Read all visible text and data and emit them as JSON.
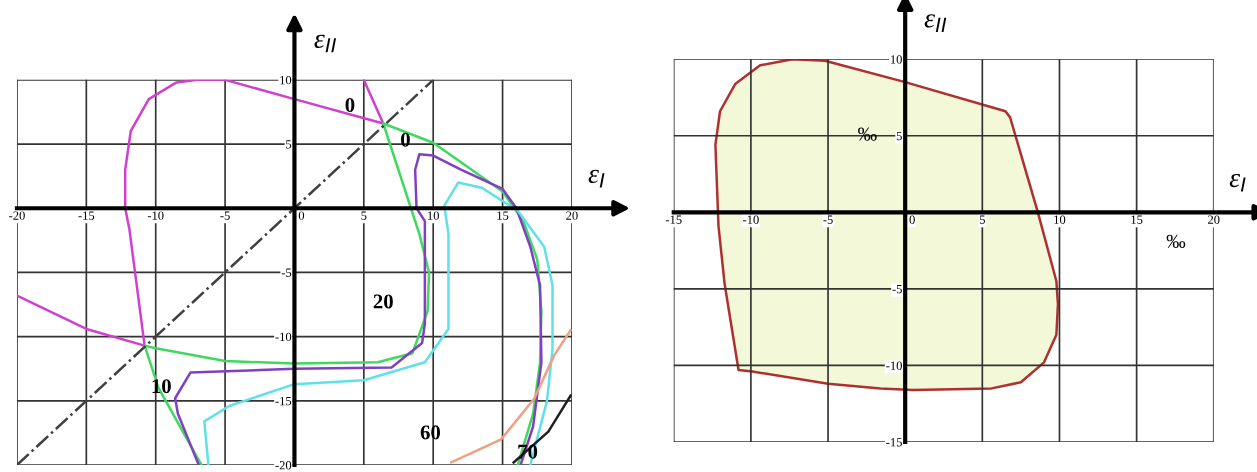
{
  "chart_data": [
    {
      "type": "line",
      "xlabel": "ε$_{I}$",
      "ylabel": "ε$_{II}$",
      "xlim": [
        -20,
        20
      ],
      "ylim": [
        -20,
        10
      ],
      "xticks": [
        -20,
        -15,
        -10,
        -5,
        0,
        5,
        10,
        15,
        20
      ],
      "yticks": [
        -20,
        -15,
        -10,
        -5,
        {
          "value": 0,
          "label": null
        },
        5,
        10
      ],
      "grid": true,
      "marker": "none",
      "series": [
        {
          "color": "#d040d0",
          "x": [
            -20,
            -15,
            -10.8,
            -11.9,
            -12.2,
            -12.2,
            -11.8,
            -10.5,
            -8.5,
            -7,
            -5,
            0,
            6.4,
            5
          ],
          "values": [
            -6.8,
            -9.4,
            -10.7,
            -1.6,
            0,
            3,
            6,
            8.5,
            9.8,
            10,
            10,
            8.5,
            6.6,
            10
          ]
        },
        {
          "color": "#40d860",
          "x": [
            6.4,
            10,
            15,
            16.5,
            17.5,
            17.8,
            17.7,
            17.2,
            16.1
          ],
          "values": [
            6.6,
            5.1,
            1.3,
            -1,
            -4,
            -8,
            -12,
            -16,
            -20
          ]
        },
        {
          "color": "#40d860",
          "x": [
            6.4,
            9,
            9.7,
            9.6,
            8.5,
            6,
            0,
            -5,
            -10,
            -10.8,
            -9.8,
            -6.7
          ],
          "values": [
            6.6,
            -2,
            -5,
            -8,
            -11.3,
            -12,
            -12.1,
            -11.9,
            -10.9,
            -10.7,
            -14,
            -20
          ]
        },
        {
          "color": "#8040c0",
          "x": [
            -6.9,
            -8.4,
            -8.6,
            -7.5,
            0,
            7,
            9.2,
            9.4,
            9.4,
            8.8,
            8.7,
            9,
            10,
            12,
            15,
            16,
            17,
            17.7,
            17.8,
            17.2,
            16.3
          ],
          "values": [
            -20,
            -16,
            -14.8,
            -12.8,
            -12.5,
            -12.4,
            -10.5,
            -9,
            -1,
            0,
            3,
            4.2,
            4.1,
            3,
            1.5,
            0,
            -3,
            -6,
            -12,
            -17,
            -20
          ]
        },
        {
          "color": "#60e0e8",
          "x": [
            -6.2,
            -6.5,
            -4.7,
            0,
            5,
            9.4,
            11.1,
            11.1,
            10.8,
            11.8,
            13.5,
            16.1,
            18,
            18.6,
            18.6,
            18.2,
            17
          ],
          "values": [
            -20,
            -16.6,
            -15.4,
            -13.7,
            -13.4,
            -12,
            -9.4,
            -2,
            0.2,
            2,
            1.6,
            -0.2,
            -3,
            -6,
            -11,
            -15,
            -20
          ]
        },
        {
          "color": "#f0a080",
          "x": [
            11.3,
            14.9,
            17.3,
            18.7,
            19.9
          ],
          "values": [
            -19.8,
            -18,
            -14.8,
            -11.5,
            -9.5
          ]
        },
        {
          "color": "#202020",
          "x": [
            15.8,
            18.3,
            19.9
          ],
          "values": [
            -19.8,
            -17.4,
            -14.6
          ]
        },
        {
          "color": "#404040",
          "line_style": "dashed",
          "x": [
            -20,
            10
          ],
          "values": [
            -20,
            10
          ]
        }
      ],
      "annotations": [
        "0",
        "0",
        "10",
        "20",
        "60",
        "70"
      ]
    },
    {
      "type": "area",
      "xlabel": "ε$_{I}$",
      "ylabel": "ε$_{II}$",
      "xlim": [
        -15,
        20
      ],
      "ylim": [
        -15,
        10
      ],
      "xticks": [
        -15,
        -10,
        -5,
        0,
        5,
        10,
        15,
        20
      ],
      "yticks": [
        -15,
        -10,
        -5,
        {
          "value": 0,
          "label": null
        },
        5,
        10
      ],
      "grid": true,
      "series": [
        {
          "color": "#b03030",
          "x": [
            -12.3,
            -12.0,
            -11.0,
            -9.4,
            -7.3,
            -5.2,
            0,
            6.5,
            6.8,
            8.6,
            9.8,
            9.9,
            9.8,
            9.0,
            7.5,
            5.6,
            0.5,
            -1.6,
            -5,
            -9.9,
            -10.8,
            -11.7,
            -12.1,
            -12.3
          ],
          "values": [
            4.4,
            6.6,
            8.4,
            9.6,
            10,
            9.9,
            8.5,
            6.6,
            6.2,
            0,
            -4.5,
            -6,
            -8,
            -9.8,
            -11.1,
            -11.5,
            -11.6,
            -11.5,
            -11.2,
            -10.4,
            -10.3,
            -4.7,
            -0.9,
            4.4
          ]
        }
      ],
      "annotations": [
        "‰",
        "‰"
      ]
    }
  ]
}
